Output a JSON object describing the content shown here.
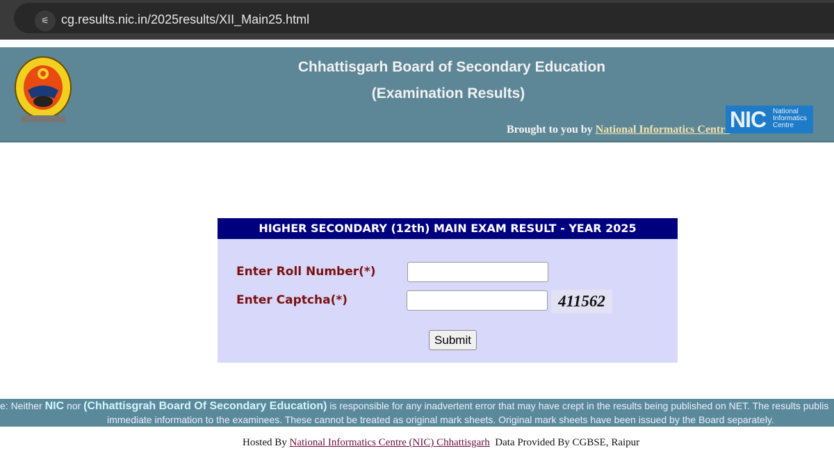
{
  "browser": {
    "url": "cg.results.nic.in/2025results/XII_Main25.html",
    "site_info_icon": "tune-icon"
  },
  "header": {
    "title": "Chhattisgarh Board of Secondary Education",
    "subtitle": "(Examination Results)",
    "brought_prefix": "Brought to you by",
    "brought_link": "National Informatics Centre",
    "nic_logo": {
      "abbr": "NIC",
      "text": "National Informatics Centre"
    },
    "colors": {
      "band": "#5d8796"
    }
  },
  "form": {
    "title": "HIGHER SECONDARY (12th) MAIN EXAM RESULT - YEAR 2025",
    "roll_label": "Enter Roll Number(*)",
    "roll_value": "",
    "captcha_label": "Enter Captcha(*)",
    "captcha_value": "",
    "captcha_code": "411562",
    "submit": "Submit",
    "colors": {
      "head": "#00007f",
      "body": "#d8d8fa",
      "label": "#7a1010"
    }
  },
  "disclaimer": {
    "line1_a": "e: Neither ",
    "nic": "NIC",
    "line1_b": " nor ",
    "board": "(Chhattisgrah Board Of Secondary Education)",
    "line1_c": " is responsible for any inadvertent error that may have crept in the results being published on NET. The results publis",
    "line2": "immediate information to the examinees. These cannot be treated as original mark sheets. Original mark sheets have been issued by the Board separately."
  },
  "footer": {
    "hosted_prefix": "Hosted By",
    "hosted_link": "National Informatics Centre (NIC) Chhattisgarh",
    "data_provided": "Data Provided By CGBSE, Raipur"
  }
}
